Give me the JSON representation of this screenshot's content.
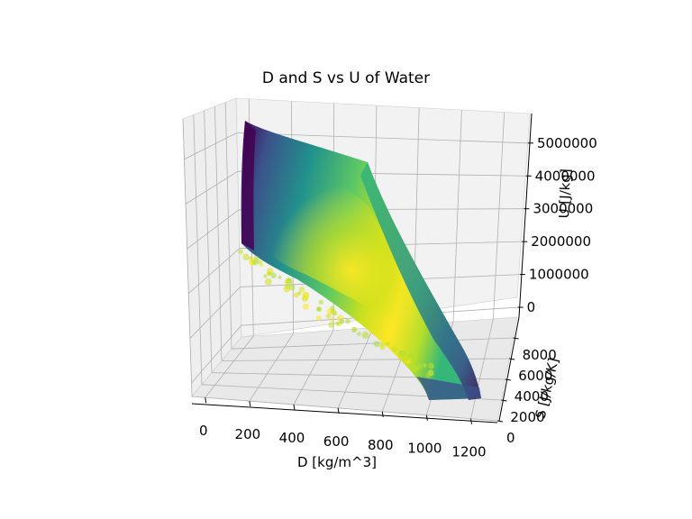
{
  "chart_data": {
    "type": "scatter3d",
    "title": "D and S vs U of Water",
    "xlabel": "D [kg/m^3]",
    "ylabel": "S [J/kg/K]",
    "zlabel": "U [J/kg]",
    "x_ticks": [
      "0",
      "200",
      "400",
      "600",
      "800",
      "1000",
      "1200"
    ],
    "y_ticks": [
      "0",
      "2000",
      "4000",
      "6000",
      "8000"
    ],
    "z_ticks": [
      "0",
      "1000000",
      "2000000",
      "3000000",
      "4000000",
      "5000000"
    ],
    "xlim": [
      -60,
      1320
    ],
    "ylim": [
      0,
      10000
    ],
    "zlim": [
      -300000,
      5900000
    ],
    "colormap": "viridis",
    "surface_outline": [
      {
        "D": 5,
        "S": 9500,
        "U": 5600000
      },
      {
        "D": 580,
        "S": 8000,
        "U": 4700000
      },
      {
        "D": 1060,
        "S": 3500,
        "U": 1800000
      },
      {
        "D": 1140,
        "S": 1000,
        "U": 300000
      },
      {
        "D": 1280,
        "S": 900,
        "U": 200000
      },
      {
        "D": 1000,
        "S": 1800,
        "U": 500000
      },
      {
        "D": 700,
        "S": 3000,
        "U": 1200000
      },
      {
        "D": 400,
        "S": 5000,
        "U": 2000000
      },
      {
        "D": 20,
        "S": 8500,
        "U": 3000000
      }
    ],
    "grid": true
  }
}
